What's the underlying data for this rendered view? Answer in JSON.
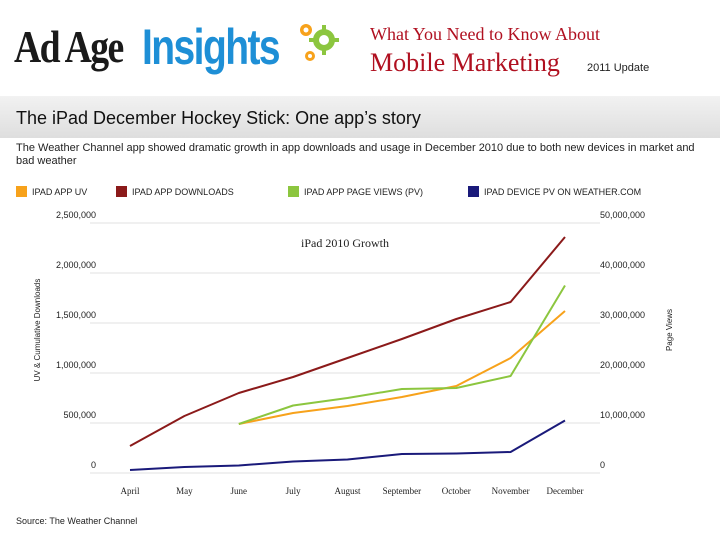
{
  "header": {
    "logo_part1": "Ad Age",
    "logo_part2": "Insights",
    "title_line1": "What You Need to Know About",
    "title_line2": "Mobile Marketing",
    "title_update": "2011 Update"
  },
  "colors": {
    "brand_red": "#b01020",
    "brand_blue": "#1e8fd6",
    "gear_green": "#8cc63f",
    "gear_orange": "#f7a21b"
  },
  "page": {
    "heading": "The iPad December Hockey Stick: One app’s story",
    "description": "The Weather Channel app showed dramatic growth in app downloads and usage in December 2010 due to both new devices in market and bad weather",
    "source": "Source: The Weather Channel"
  },
  "legend": [
    {
      "label": "IPAD APP UV",
      "color": "#f7a21b"
    },
    {
      "label": "IPAD APP DOWNLOADS",
      "color": "#8b1a1a"
    },
    {
      "label": "IPAD APP PAGE VIEWS (PV)",
      "color": "#8cc63f"
    },
    {
      "label": "IPAD DEVICE PV ON WEATHER.COM",
      "color": "#1a1a7a"
    }
  ],
  "chart_data": {
    "type": "line",
    "title": "iPad 2010 Growth",
    "xlabel": "",
    "ylabel_left": "UV & Cumulative Downloads",
    "ylabel_right": "Page Views",
    "categories": [
      "April",
      "May",
      "June",
      "July",
      "August",
      "September",
      "October",
      "November",
      "December"
    ],
    "left_ticks": [
      "2,500,000",
      "2,000,000",
      "1,500,000",
      "1,000,000",
      "500,000",
      "0"
    ],
    "right_ticks": [
      "50,000,000",
      "40,000,000",
      "30,000,000",
      "20,000,000",
      "10,000,000",
      "0"
    ],
    "ylim_left": [
      0,
      2500000
    ],
    "ylim_right": [
      0,
      50000000
    ],
    "grid": true,
    "legend_position": "top",
    "series": [
      {
        "name": "IPAD APP UV",
        "axis": "left",
        "color": "#f7a21b",
        "values": [
          null,
          null,
          490000,
          600000,
          670000,
          760000,
          870000,
          1150000,
          1620000
        ]
      },
      {
        "name": "IPAD APP DOWNLOADS",
        "axis": "left",
        "color": "#8b1a1a",
        "values": [
          270000,
          570000,
          800000,
          960000,
          1150000,
          1340000,
          1540000,
          1710000,
          2360000
        ]
      },
      {
        "name": "IPAD APP PAGE VIEWS (PV)",
        "axis": "right",
        "color": "#8cc63f",
        "values": [
          null,
          null,
          9800000,
          13500000,
          15000000,
          16800000,
          17000000,
          19400000,
          37500000
        ]
      },
      {
        "name": "IPAD DEVICE PV ON WEATHER.COM",
        "axis": "right",
        "color": "#1a1a7a",
        "values": [
          600000,
          1200000,
          1500000,
          2300000,
          2700000,
          3800000,
          3900000,
          4200000,
          10500000
        ]
      }
    ]
  }
}
